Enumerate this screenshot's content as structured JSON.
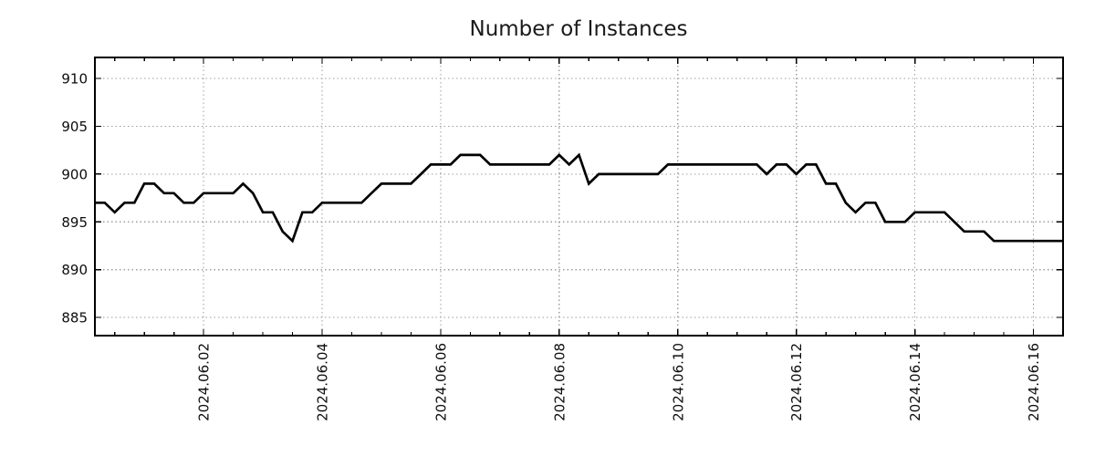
{
  "chart_data": {
    "type": "line",
    "title": "Number of Instances",
    "xlabel": "",
    "ylabel": "",
    "grid": true,
    "legend": "none",
    "line_color": "#000000",
    "grid_color": "#9e9e9e",
    "frame_color": "#000000",
    "x_axis": {
      "tick_labels": [
        "2024.06.02",
        "2024.06.04",
        "2024.06.06",
        "2024.06.08",
        "2024.06.10",
        "2024.06.12",
        "2024.06.14",
        "2024.06.16"
      ],
      "tick_day_offsets": [
        0,
        2,
        4,
        6,
        8,
        10,
        12,
        14
      ],
      "minor_tick_every_days": 0.5,
      "lim_days": [
        -1.8333,
        14.5
      ]
    },
    "y_axis": {
      "ticks": [
        885,
        890,
        895,
        900,
        905,
        910
      ],
      "lim": [
        883.1,
        912.2
      ]
    },
    "series": [
      {
        "name": "Number of Instances",
        "start": "2024-05-31 04:00",
        "interval_hours": 4,
        "x_start_day_offset": -1.8333,
        "values": [
          897,
          897,
          896,
          897,
          897,
          899,
          899,
          898,
          898,
          897,
          897,
          898,
          898,
          898,
          898,
          899,
          898,
          896,
          896,
          894,
          893,
          896,
          896,
          897,
          897,
          897,
          897,
          897,
          898,
          899,
          899,
          899,
          899,
          900,
          901,
          901,
          901,
          902,
          902,
          902,
          901,
          901,
          901,
          901,
          901,
          901,
          901,
          902,
          901,
          902,
          899,
          900,
          900,
          900,
          900,
          900,
          900,
          900,
          901,
          901,
          901,
          901,
          901,
          901,
          901,
          901,
          901,
          901,
          900,
          901,
          901,
          900,
          901,
          901,
          899,
          899,
          897,
          896,
          897,
          897,
          895,
          895,
          895,
          896,
          896,
          896,
          896,
          895,
          894,
          894,
          894,
          893,
          893,
          893,
          893,
          893,
          893,
          893,
          893
        ]
      }
    ]
  }
}
